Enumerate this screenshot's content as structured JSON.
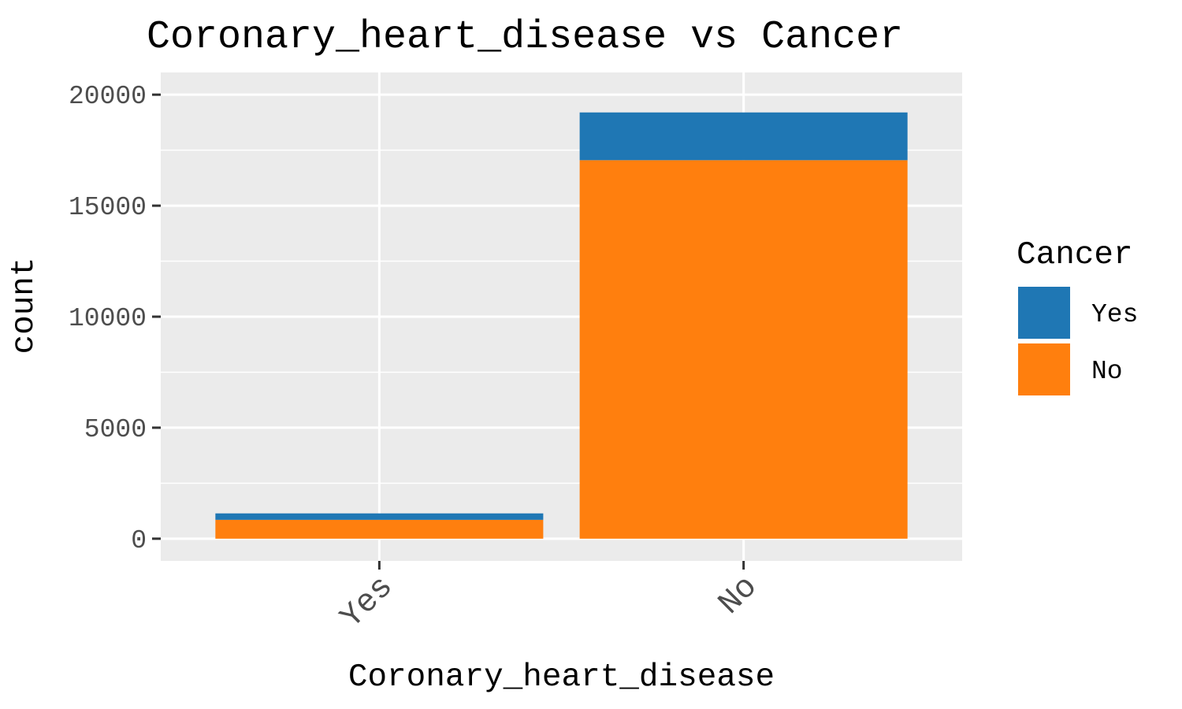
{
  "chart_data": {
    "type": "bar",
    "stacked": true,
    "title": "Coronary_heart_disease vs Cancer",
    "xlabel": "Coronary_heart_disease",
    "ylabel": "count",
    "categories": [
      "Yes",
      "No"
    ],
    "series": [
      {
        "name": "No",
        "values": [
          850,
          17050
        ],
        "color": "#ff7f0e"
      },
      {
        "name": "Yes",
        "values": [
          290,
          2150
        ],
        "color": "#1f77b4"
      }
    ],
    "ylim": [
      -1000,
      21000
    ],
    "yticks": [
      0,
      5000,
      10000,
      15000,
      20000
    ],
    "ytick_labels": [
      "0",
      "5000",
      "10000",
      "15000",
      "20000"
    ],
    "grid": true,
    "panel_background": "#ebebeb",
    "legend": {
      "title": "Cancer",
      "position": "right",
      "entries": [
        {
          "label": "Yes",
          "color": "#1f77b4"
        },
        {
          "label": "No",
          "color": "#ff7f0e"
        }
      ]
    }
  }
}
